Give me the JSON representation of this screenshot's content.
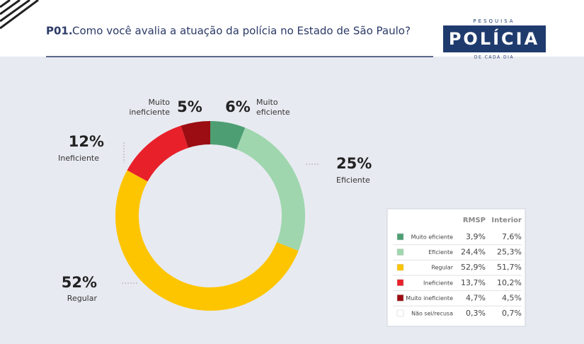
{
  "header": {
    "code": "P01.",
    "title": "Como você avalia a atuação da polícia no Estado de São Paulo?"
  },
  "logo": {
    "top": "PESQUISA",
    "main": "POLÍCIA",
    "bottom": "DE CADA DIA"
  },
  "chart_data": {
    "type": "donut",
    "categories": [
      "Muito eficiente",
      "Eficiente",
      "Regular",
      "Ineficiente",
      "Muito ineficiente"
    ],
    "values": [
      6,
      25,
      52,
      12,
      5
    ],
    "value_labels": [
      "6%",
      "25%",
      "52%",
      "12%",
      "5%"
    ],
    "colors": [
      "#4e9e74",
      "#9fd6ae",
      "#fdc500",
      "#e8202a",
      "#9b0d12"
    ]
  },
  "table": {
    "columns": [
      "RMSP",
      "Interior"
    ],
    "rows": [
      {
        "label": "Muito eficiente",
        "color": "#4e9e74",
        "values": [
          "3,9%",
          "7,6%"
        ]
      },
      {
        "label": "Eficiente",
        "color": "#9fd6ae",
        "values": [
          "24,4%",
          "25,3%"
        ]
      },
      {
        "label": "Regular",
        "color": "#fdc500",
        "values": [
          "52,9%",
          "51,7%"
        ]
      },
      {
        "label": "Ineficiente",
        "color": "#e8202a",
        "values": [
          "13,7%",
          "10,2%"
        ]
      },
      {
        "label": "Muito ineficiente",
        "color": "#9b0d12",
        "values": [
          "4,7%",
          "4,5%"
        ]
      },
      {
        "label": "Não sei/recusa",
        "color": "#ffffff",
        "values": [
          "0,3%",
          "0,7%"
        ]
      }
    ]
  }
}
